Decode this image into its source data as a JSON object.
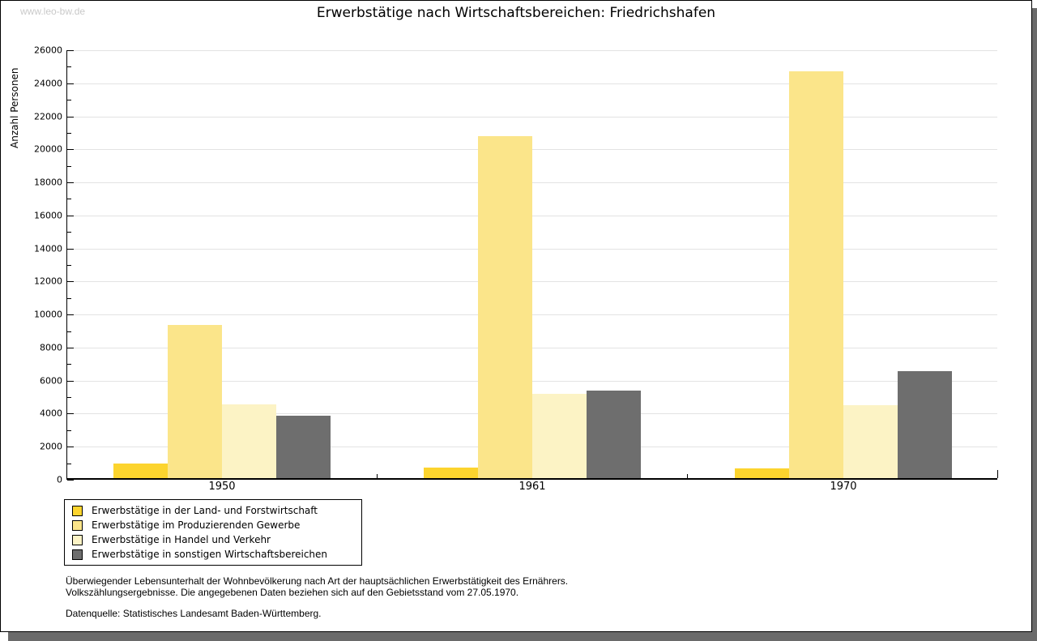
{
  "watermark": "www.leo-bw.de",
  "title": "Erwerbstätige nach Wirtschaftsbereichen: Friedrichshafen",
  "chart_data": {
    "type": "bar",
    "title": "Erwerbstätige nach Wirtschaftsbereichen: Friedrichshafen",
    "ylabel": "Anzahl Personen",
    "xlabel": "",
    "categories": [
      "1950",
      "1961",
      "1970"
    ],
    "series": [
      {
        "name": "Erwerbstätige in der Land- und Forstwirtschaft",
        "color": "#FCD42E",
        "values": [
          900,
          650,
          600
        ]
      },
      {
        "name": "Erwerbstätige im Produzierenden Gewerbe",
        "color": "#FBE58A",
        "values": [
          9250,
          20700,
          24650
        ]
      },
      {
        "name": "Erwerbstätige in Handel und Verkehr",
        "color": "#FCF3C5",
        "values": [
          4450,
          5100,
          4400
        ]
      },
      {
        "name": "Erwerbstätige in sonstigen Wirtschaftsbereichen",
        "color": "#6E6E6E",
        "values": [
          3800,
          5300,
          6500
        ]
      }
    ],
    "ylim": [
      0,
      26000
    ],
    "ytick_step": 2000,
    "ytick_minor_step": 1000,
    "grid": true,
    "gridline_color": "#E3E3E3",
    "legend_position": "bottom-left"
  },
  "footnotes": {
    "line1": "Überwiegender Lebensunterhalt der Wohnbevölkerung nach Art der hauptsächlichen Erwerbstätigkeit des Ernährers.",
    "line2": "Volkszählungsergebnisse. Die angegebenen Daten beziehen sich auf den Gebietsstand vom 27.05.1970.",
    "source": "Datenquelle: Statistisches Landesamt Baden-Württemberg."
  }
}
